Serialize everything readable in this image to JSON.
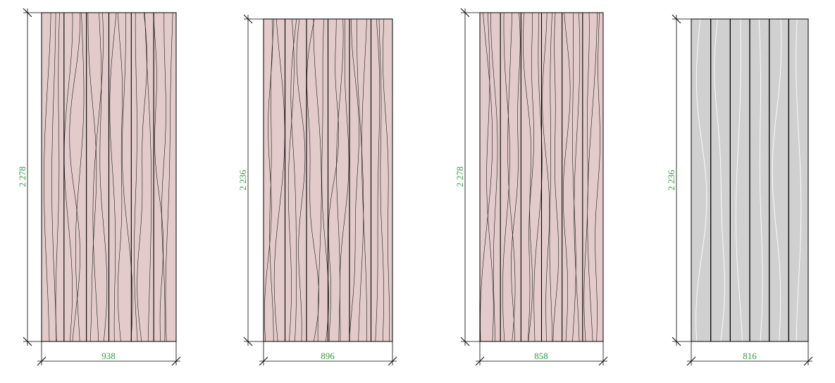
{
  "colors": {
    "panel_wood": "#e3cbcb",
    "panel_grey": "#d0d0d0",
    "dimension_text": "#2e9e3a",
    "line": "#000000"
  },
  "panels": [
    {
      "id": "panel-1",
      "width_label": "938",
      "height_label": "2 278",
      "fill": "wood",
      "grain": "dark"
    },
    {
      "id": "panel-2",
      "width_label": "896",
      "height_label": "2 236",
      "fill": "wood",
      "grain": "dark"
    },
    {
      "id": "panel-3",
      "width_label": "858",
      "height_label": "2 278",
      "fill": "wood",
      "grain": "dark"
    },
    {
      "id": "panel-4",
      "width_label": "816",
      "height_label": "2 236",
      "fill": "grey",
      "grain": "light"
    }
  ]
}
